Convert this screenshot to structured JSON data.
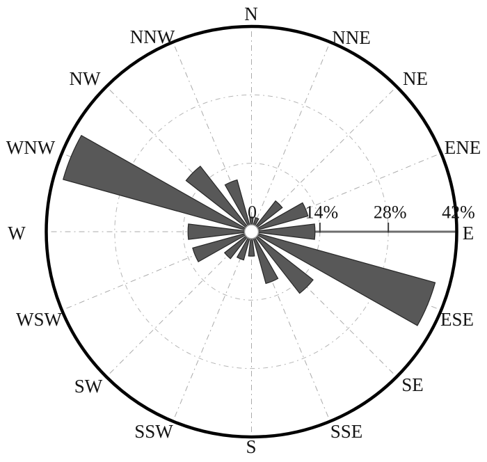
{
  "chart_data": {
    "type": "bar",
    "subtype": "polar-windrose",
    "categories": [
      "N",
      "NNE",
      "NE",
      "ENE",
      "E",
      "ESE",
      "SE",
      "SSE",
      "S",
      "SSW",
      "SW",
      "WSW",
      "W",
      "WNW",
      "NW",
      "NNW"
    ],
    "values": [
      3,
      3,
      8,
      12,
      13,
      39,
      16,
      11,
      5,
      6,
      7,
      12.5,
      13,
      40,
      17,
      11
    ],
    "unit": "%",
    "angle_start": "N",
    "angle_step_deg": 22.5,
    "radial_axis": {
      "direction_of_labels": "E",
      "ticks": [
        "0",
        "14%",
        "28%",
        "42%"
      ],
      "tick_values": [
        0,
        14,
        28,
        42
      ],
      "max": 42
    },
    "grid": {
      "radial_gridlines": true,
      "circular_gridlines_at": [
        14,
        28
      ],
      "style": "dash-dot"
    },
    "colors": {
      "bar_fill": "#585858",
      "bar_edge": "#262626",
      "outer_ring": "#000000",
      "gridline": "#aaaaaa",
      "grid_circle": "#b5b5b5",
      "axis_line": "#6e6e6e",
      "tick_mark": "#3a3a3a",
      "text": "#141414",
      "hub_fill": "#ffffff",
      "hub_edge": "#999999",
      "background": "#ffffff"
    }
  }
}
